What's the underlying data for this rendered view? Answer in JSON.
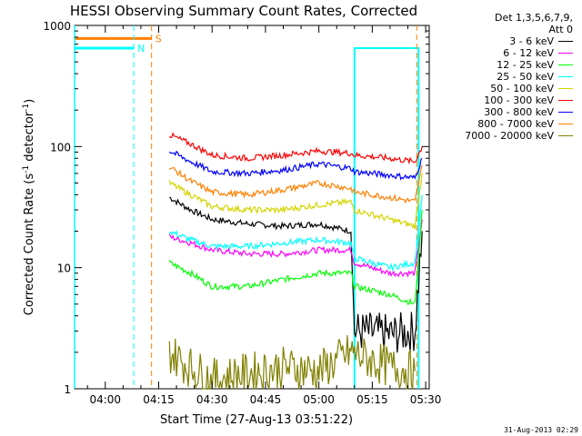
{
  "chart_data": {
    "type": "line",
    "title": "HESSI Observing Summary Count Rates, Corrected",
    "xlabel": "Start Time (27-Aug-13 03:51:22)",
    "ylabel": "Corrected Count Rate (s",
    "ylabel_sup1": "-1",
    "ylabel_mid": " detector",
    "ylabel_sup2": "-1",
    "ylabel_end": ")",
    "x_range_minutes": [
      "03:51:22",
      "05:31:00"
    ],
    "x_ticks": [
      "04:00",
      "04:15",
      "04:30",
      "04:45",
      "05:00",
      "05:15",
      "05:30"
    ],
    "y_scale": "log",
    "ylim": [
      1,
      1000
    ],
    "y_ticks": [
      "1",
      "10",
      "100",
      "1000"
    ],
    "legend_header": [
      "Det 1,3,5,6,7,9,",
      "Att 0"
    ],
    "series": [
      {
        "name": "3 - 6 keV",
        "color": "#000000",
        "points": [
          [
            "04:18",
            38
          ],
          [
            "04:24",
            30
          ],
          [
            "04:30",
            25
          ],
          [
            "04:40",
            23
          ],
          [
            "04:50",
            22
          ],
          [
            "05:00",
            23
          ],
          [
            "05:09",
            20
          ],
          [
            "05:10",
            3
          ],
          [
            "05:20",
            2.8
          ],
          [
            "05:27",
            3
          ],
          [
            "05:29",
            20
          ]
        ]
      },
      {
        "name": "6 - 12 keV",
        "color": "#ff00ff",
        "points": [
          [
            "04:18",
            18
          ],
          [
            "04:24",
            16
          ],
          [
            "04:30",
            14
          ],
          [
            "04:40",
            13
          ],
          [
            "04:50",
            13
          ],
          [
            "05:00",
            14
          ],
          [
            "05:09",
            14
          ],
          [
            "05:10",
            11
          ],
          [
            "05:20",
            9
          ],
          [
            "05:27",
            9
          ],
          [
            "05:29",
            25
          ]
        ]
      },
      {
        "name": "12 - 25 keV",
        "color": "#00ff00",
        "points": [
          [
            "04:18",
            11
          ],
          [
            "04:24",
            9
          ],
          [
            "04:30",
            7
          ],
          [
            "04:40",
            7
          ],
          [
            "04:50",
            8
          ],
          [
            "05:00",
            9
          ],
          [
            "05:09",
            9
          ],
          [
            "05:10",
            7
          ],
          [
            "05:20",
            6
          ],
          [
            "05:27",
            5
          ],
          [
            "05:29",
            30
          ]
        ]
      },
      {
        "name": "25 - 50 keV",
        "color": "#00ffff",
        "points": [
          [
            "04:18",
            20
          ],
          [
            "04:24",
            17
          ],
          [
            "04:30",
            15
          ],
          [
            "04:40",
            15
          ],
          [
            "04:50",
            16
          ],
          [
            "05:00",
            17
          ],
          [
            "05:09",
            16
          ],
          [
            "05:10",
            12
          ],
          [
            "05:20",
            10
          ],
          [
            "05:27",
            11
          ],
          [
            "05:29",
            40
          ]
        ]
      },
      {
        "name": "50 - 100 keV",
        "color": "#d4d400",
        "points": [
          [
            "04:18",
            50
          ],
          [
            "04:24",
            40
          ],
          [
            "04:30",
            32
          ],
          [
            "04:40",
            30
          ],
          [
            "04:50",
            30
          ],
          [
            "05:00",
            33
          ],
          [
            "05:09",
            35
          ],
          [
            "05:10",
            30
          ],
          [
            "05:20",
            25
          ],
          [
            "05:27",
            22
          ],
          [
            "05:29",
            60
          ]
        ]
      },
      {
        "name": "100 - 300 keV",
        "color": "#ff0000",
        "points": [
          [
            "04:18",
            125
          ],
          [
            "04:24",
            105
          ],
          [
            "04:30",
            85
          ],
          [
            "04:40",
            80
          ],
          [
            "04:50",
            85
          ],
          [
            "05:00",
            92
          ],
          [
            "05:09",
            88
          ],
          [
            "05:10",
            85
          ],
          [
            "05:20",
            80
          ],
          [
            "05:27",
            75
          ],
          [
            "05:29",
            100
          ]
        ]
      },
      {
        "name": "300 - 800 keV",
        "color": "#0000ff",
        "points": [
          [
            "04:18",
            92
          ],
          [
            "04:24",
            75
          ],
          [
            "04:30",
            62
          ],
          [
            "04:40",
            60
          ],
          [
            "04:50",
            64
          ],
          [
            "05:00",
            72
          ],
          [
            "05:09",
            66
          ],
          [
            "05:10",
            62
          ],
          [
            "05:20",
            58
          ],
          [
            "05:27",
            55
          ],
          [
            "05:29",
            80
          ]
        ]
      },
      {
        "name": "800 - 7000 keV",
        "color": "#ff8000",
        "points": [
          [
            "04:18",
            68
          ],
          [
            "04:24",
            52
          ],
          [
            "04:30",
            42
          ],
          [
            "04:40",
            40
          ],
          [
            "04:50",
            44
          ],
          [
            "05:00",
            50
          ],
          [
            "05:09",
            45
          ],
          [
            "05:10",
            42
          ],
          [
            "05:20",
            38
          ],
          [
            "05:27",
            35
          ],
          [
            "05:29",
            70
          ]
        ]
      },
      {
        "name": "7000 - 20000 keV",
        "color": "#808000",
        "points": [
          [
            "04:18",
            2
          ],
          [
            "04:24",
            1.5
          ],
          [
            "04:30",
            1.2
          ],
          [
            "04:50",
            1.5
          ],
          [
            "05:00",
            1.4
          ],
          [
            "05:09",
            2
          ],
          [
            "05:20",
            1.5
          ],
          [
            "05:27",
            1.4
          ]
        ]
      }
    ],
    "annotations": [
      {
        "label": "S",
        "color": "#ff8000",
        "bar_from": "03:51:22",
        "bar_to": "04:13",
        "y": 780,
        "vline": "04:13"
      },
      {
        "label": "N",
        "color": "#00ffff",
        "bar_from": "03:51:22",
        "bar_to": "04:08",
        "y": 650,
        "vline": "04:08"
      }
    ],
    "attenuator_window": [
      "05:10",
      "05:28"
    ],
    "grid": false,
    "legend_position": "right"
  },
  "footer": {
    "stamp": "31-Aug-2013 02:29"
  }
}
